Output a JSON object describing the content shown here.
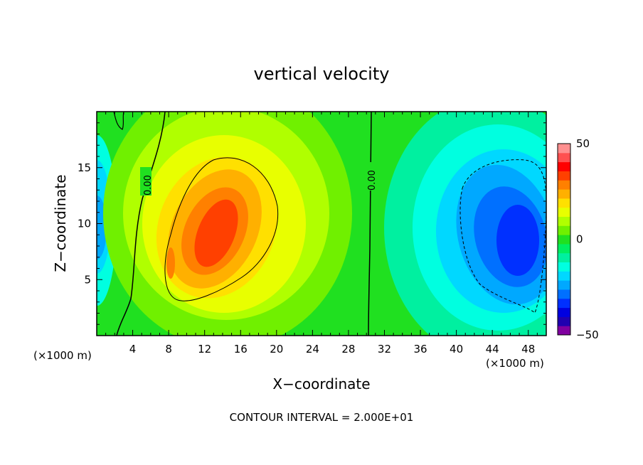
{
  "chart_data": {
    "type": "heatmap",
    "title": "vertical velocity",
    "xlabel": "X−coordinate",
    "ylabel": "Z−coordinate",
    "x_unit": "(×1000 m)",
    "z_unit": "(×1000 m)",
    "xlim": [
      0,
      50
    ],
    "ylim": [
      0,
      20
    ],
    "x_ticks": [
      "4",
      "8",
      "12",
      "16",
      "20",
      "24",
      "28",
      "32",
      "36",
      "40",
      "44",
      "48"
    ],
    "y_ticks": [
      "5",
      "10",
      "15"
    ],
    "contour_labels": [
      "0.00",
      "0.00"
    ],
    "footer": "CONTOUR INTERVAL = 2.000E+01",
    "colorbar": {
      "min": -50,
      "max": 50,
      "tick_labels": [
        "50",
        "0",
        "−50"
      ],
      "colors": [
        "#8000a0",
        "#2000b0",
        "#0000e0",
        "#0030ff",
        "#0070ff",
        "#00a8ff",
        "#00d8ff",
        "#00ffe0",
        "#00f0a0",
        "#00ee60",
        "#20e020",
        "#70f000",
        "#b0ff00",
        "#e8ff00",
        "#ffe000",
        "#ffb000",
        "#ff8000",
        "#ff4000",
        "#ff0000",
        "#ff5050",
        "#ff9090"
      ]
    },
    "features": [
      {
        "kind": "updraft_core",
        "x": 13.5,
        "z": 9.5,
        "max": 40
      },
      {
        "kind": "downdraft_core",
        "x": 47,
        "z": 8.5,
        "min": -35
      },
      {
        "kind": "weak_downdraft",
        "x": 0.5,
        "z": 9,
        "min": -15
      }
    ]
  }
}
